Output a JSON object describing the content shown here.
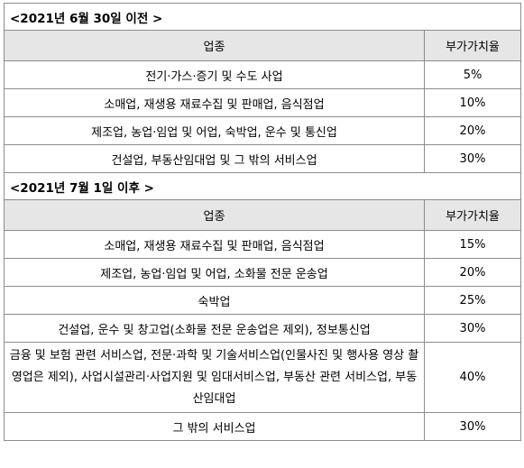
{
  "sections": [
    {
      "title": "<2021년 6월 30일 이전 >",
      "header": {
        "industry": "업종",
        "rate": "부가가치율"
      },
      "rows": [
        {
          "industry": "전기·가스·증기 및 수도 사업",
          "rate": "5%"
        },
        {
          "industry": "소매업, 재생용 재료수집 및 판매업, 음식점업",
          "rate": "10%"
        },
        {
          "industry": "제조업, 농업·임업 및 어업, 숙박업, 운수 및 통신업",
          "rate": "20%"
        },
        {
          "industry": "건설업, 부동산임대업 및 그 밖의 서비스업",
          "rate": "30%"
        }
      ]
    },
    {
      "title": "<2021년 7월 1일 이후 >",
      "header": {
        "industry": "업종",
        "rate": "부가가치율"
      },
      "rows": [
        {
          "industry": "소매업, 재생용 재료수집 및 판매업, 음식점업",
          "rate": "15%"
        },
        {
          "industry": "제조업, 농업·임업 및 어업, 소화물 전문 운송업",
          "rate": "20%"
        },
        {
          "industry": "숙박업",
          "rate": "25%"
        },
        {
          "industry": "건설업, 운수 및 창고업(소화물 전문 운송업은 제외), 정보통신업",
          "rate": "30%"
        },
        {
          "industry": "금융 및 보험 관련 서비스업, 전문·과학 및 기술서비스업(인물사진 및 행사용 영상 촬영업은 제외), 사업시설관리·사업지원 및 임대서비스업, 부동산 관련 서비스업, 부동산임대업",
          "rate": "40%"
        },
        {
          "industry": "그 밖의 서비스업",
          "rate": "30%"
        }
      ]
    }
  ]
}
